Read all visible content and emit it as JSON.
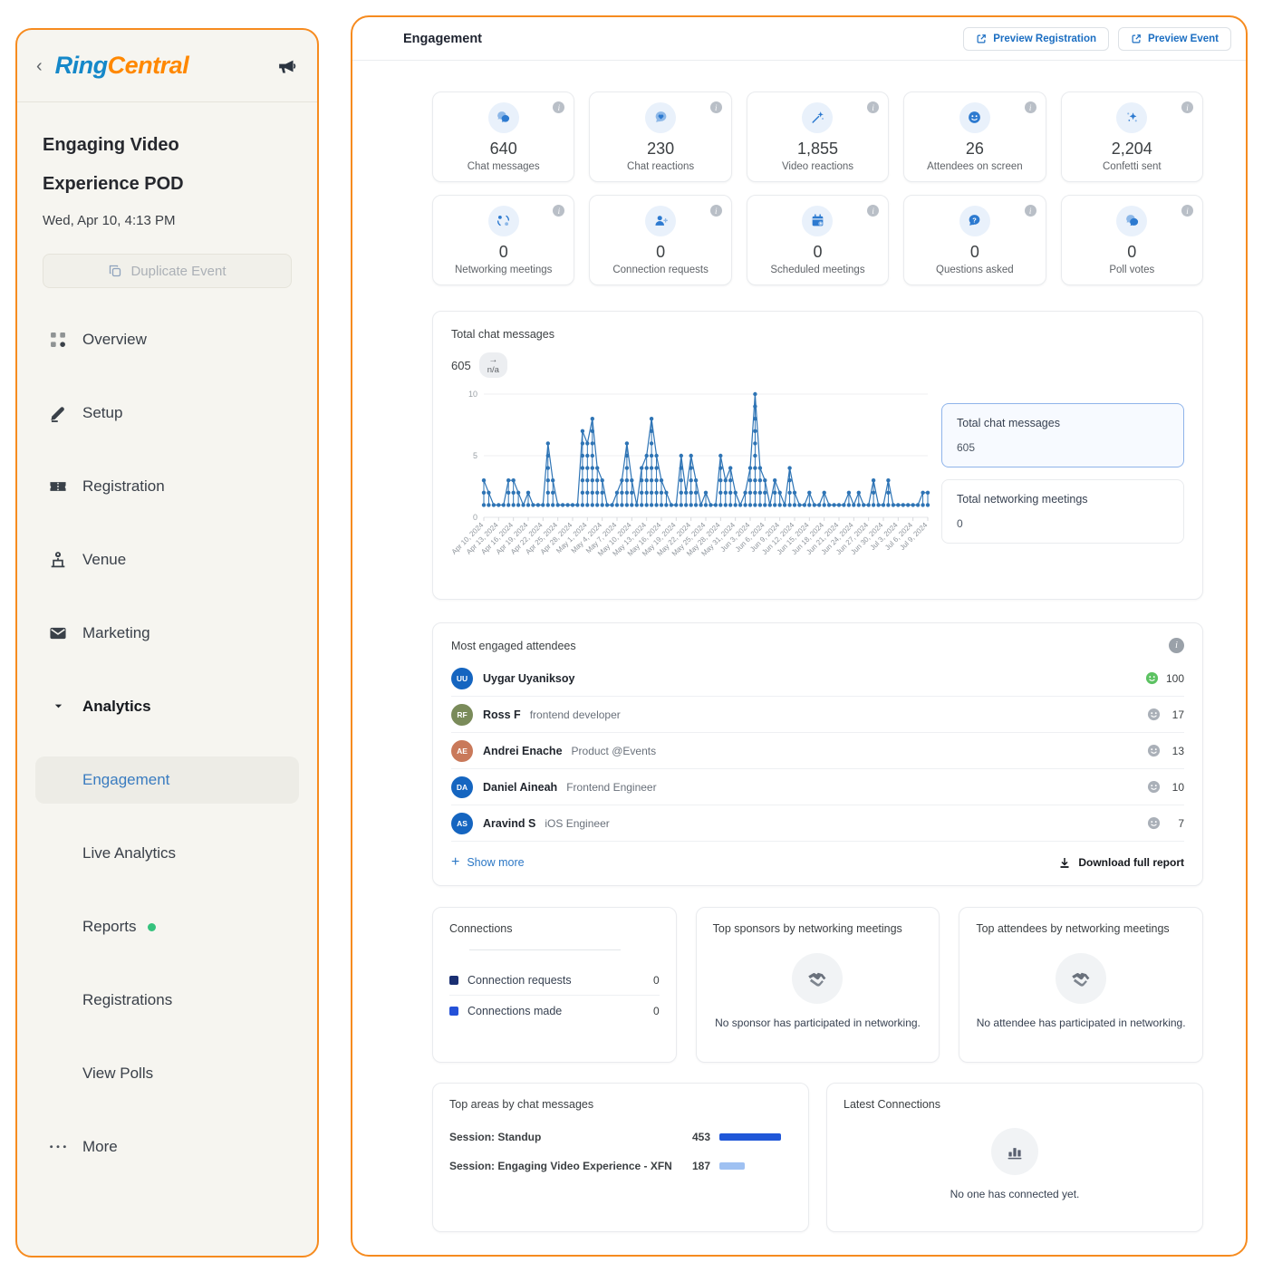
{
  "sidebar": {
    "back_chevron": "‹",
    "logo": {
      "ring": "Ring",
      "central": "Central"
    },
    "event": {
      "title_line1": "Engaging Video",
      "title_line2": "Experience POD",
      "datetime": "Wed, Apr 10, 4:13 PM",
      "duplicate_label": "Duplicate Event"
    },
    "nav": [
      {
        "label": "Overview",
        "icon": "overview-icon"
      },
      {
        "label": "Setup",
        "icon": "setup-icon"
      },
      {
        "label": "Registration",
        "icon": "registration-icon"
      },
      {
        "label": "Venue",
        "icon": "venue-icon"
      },
      {
        "label": "Marketing",
        "icon": "marketing-icon"
      },
      {
        "label": "Analytics",
        "icon": "chevron-down-icon",
        "bold": true
      },
      {
        "label": "Engagement",
        "sub": true,
        "active": true
      },
      {
        "label": "Live Analytics",
        "sub": true
      },
      {
        "label": "Reports",
        "sub": true,
        "dot": true
      },
      {
        "label": "Registrations",
        "sub": true
      },
      {
        "label": "View Polls",
        "sub": true
      },
      {
        "label": "More",
        "icon": "more-icon"
      }
    ]
  },
  "header": {
    "title": "Engagement",
    "preview_registration": "Preview Registration",
    "preview_event": "Preview Event"
  },
  "stats": [
    {
      "icon": "chat-messages-icon",
      "value": "640",
      "label": "Chat messages"
    },
    {
      "icon": "chat-reactions-icon",
      "value": "230",
      "label": "Chat reactions"
    },
    {
      "icon": "video-reactions-icon",
      "value": "1,855",
      "label": "Video reactions"
    },
    {
      "icon": "attendees-on-screen-icon",
      "value": "26",
      "label": "Attendees on screen"
    },
    {
      "icon": "confetti-sent-icon",
      "value": "2,204",
      "label": "Confetti sent"
    },
    {
      "icon": "networking-meetings-icon",
      "value": "0",
      "label": "Networking meetings"
    },
    {
      "icon": "connection-requests-icon",
      "value": "0",
      "label": "Connection requests"
    },
    {
      "icon": "scheduled-meetings-icon",
      "value": "0",
      "label": "Scheduled meetings"
    },
    {
      "icon": "questions-asked-icon",
      "value": "0",
      "label": "Questions asked"
    },
    {
      "icon": "poll-votes-icon",
      "value": "0",
      "label": "Poll votes"
    }
  ],
  "chart_data": [
    {
      "id": "total-chat-messages",
      "type": "line",
      "title": "Total chat messages",
      "current_total": "605",
      "change": "n/a",
      "change_arrow": "→",
      "ylim": [
        0,
        10
      ],
      "yticks": [
        0,
        5,
        10
      ],
      "grid": true,
      "line_color": "#2e74b5",
      "x_tick_labels": [
        "Apr 10, 2024",
        "Apr 13, 2024",
        "Apr 16, 2024",
        "Apr 19, 2024",
        "Apr 22, 2024",
        "Apr 25, 2024",
        "Apr 28, 2024",
        "May 1, 2024",
        "May 4, 2024",
        "May 7, 2024",
        "May 10, 2024",
        "May 13, 2024",
        "May 16, 2024",
        "May 19, 2024",
        "May 22, 2024",
        "May 25, 2024",
        "May 28, 2024",
        "May 31, 2024",
        "Jun 3, 2024",
        "Jun 6, 2024",
        "Jun 9, 2024",
        "Jun 12, 2024",
        "Jun 15, 2024",
        "Jun 18, 2024",
        "Jun 21, 2024",
        "Jun 24, 2024",
        "Jun 27, 2024",
        "Jun 30, 2024",
        "Jul 3, 2024",
        "Jul 6, 2024",
        "Jul 9, 2024"
      ],
      "daily_values": [
        3,
        2,
        1,
        1,
        1,
        3,
        3,
        2,
        1,
        2,
        1,
        1,
        1,
        6,
        3,
        1,
        1,
        1,
        1,
        1,
        7,
        6,
        8,
        4,
        3,
        1,
        1,
        2,
        3,
        6,
        3,
        1,
        4,
        5,
        8,
        5,
        3,
        2,
        1,
        1,
        5,
        2,
        5,
        3,
        1,
        2,
        1,
        1,
        5,
        3,
        4,
        2,
        1,
        2,
        4,
        10,
        4,
        3,
        1,
        3,
        2,
        1,
        4,
        2,
        1,
        1,
        2,
        1,
        1,
        2,
        1,
        1,
        1,
        1,
        2,
        1,
        2,
        1,
        1,
        3,
        1,
        1,
        3,
        1,
        1,
        1,
        1,
        1,
        1,
        2,
        2
      ],
      "legend": [
        {
          "label": "Total chat messages",
          "value": "605",
          "selected": true
        },
        {
          "label": "Total networking meetings",
          "value": "0",
          "selected": false
        }
      ]
    },
    {
      "id": "top-areas-by-chat-messages",
      "type": "bar",
      "title": "Top areas by chat messages",
      "categories": [
        "Session: Standup",
        "Session: Engaging Video Experience - XFN"
      ],
      "values": [
        453,
        187
      ],
      "colors": [
        "#2057d8",
        "#9fc1f2"
      ]
    }
  ],
  "attendees": {
    "title": "Most engaged attendees",
    "rows": [
      {
        "initials": "UU",
        "avatar_color": "#1565c0",
        "name": "Uygar Uyaniksoy",
        "role": "",
        "score": "100",
        "smiley": "#5cc262"
      },
      {
        "initials": "RF",
        "avatar_color": "#7a8b5a",
        "name": "Ross F",
        "role": "frontend developer",
        "score": "17",
        "smiley": "#aab0b8"
      },
      {
        "initials": "AE",
        "avatar_color": "#c9795a",
        "name": "Andrei Enache",
        "role": "Product @Events",
        "score": "13",
        "smiley": "#aab0b8"
      },
      {
        "initials": "DA",
        "avatar_color": "#1565c0",
        "name": "Daniel Aineah",
        "role": "Frontend Engineer",
        "score": "10",
        "smiley": "#aab0b8"
      },
      {
        "initials": "AS",
        "avatar_color": "#1565c0",
        "name": "Aravind S",
        "role": "iOS Engineer",
        "score": "7",
        "smiley": "#aab0b8"
      }
    ],
    "show_more": "Show more",
    "download_report": "Download full report"
  },
  "connections": {
    "title": "Connections",
    "rows": [
      {
        "label": "Connection requests",
        "value": "0",
        "color": "#1a2f72"
      },
      {
        "label": "Connections made",
        "value": "0",
        "color": "#2451d8"
      }
    ]
  },
  "top_sponsors": {
    "title": "Top sponsors by networking meetings",
    "empty": "No sponsor has participated in networking."
  },
  "top_attendees_net": {
    "title": "Top attendees by networking meetings",
    "empty": "No attendee has participated in networking."
  },
  "latest_connections": {
    "title": "Latest Connections",
    "empty": "No one has connected yet."
  }
}
